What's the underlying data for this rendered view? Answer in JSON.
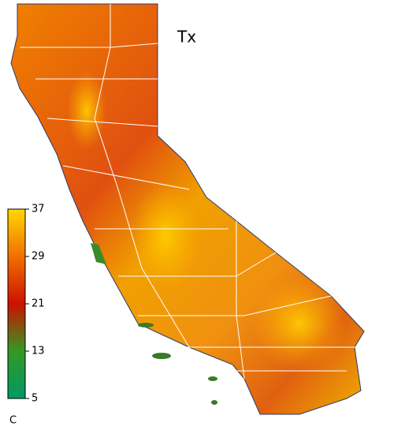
{
  "map": {
    "title": "Tx",
    "colorbar": {
      "unit": "C",
      "range": [
        5,
        37
      ],
      "ticks": [
        5,
        13,
        21,
        29,
        37
      ],
      "colors": [
        "#009966",
        "#339922",
        "#cc1100",
        "#f07000",
        "#ffd700"
      ]
    }
  }
}
